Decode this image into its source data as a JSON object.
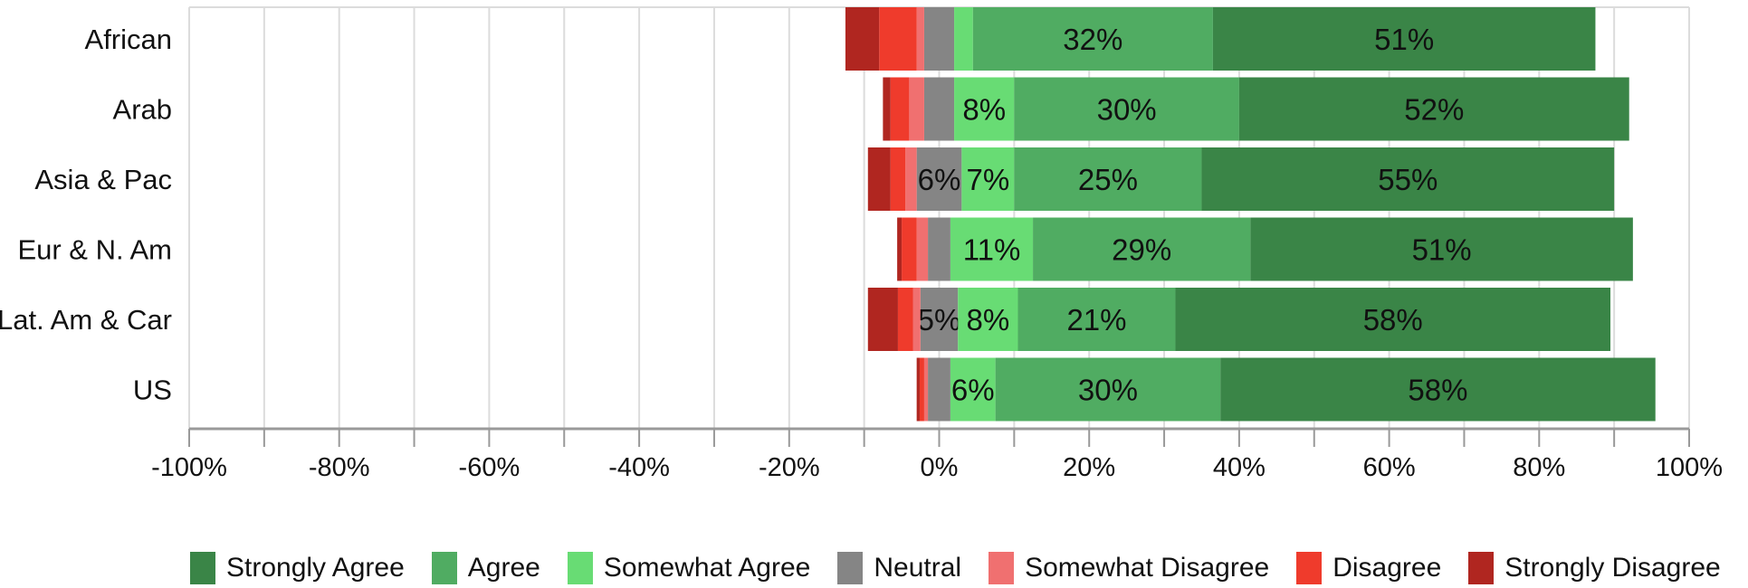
{
  "chart_data": {
    "type": "bar",
    "orientation": "horizontal",
    "stacked": true,
    "diverging": true,
    "categories": [
      "African",
      "Arab",
      "Asia & Pac",
      "Eur & N. Am",
      "Lat. Am & Car",
      "US"
    ],
    "xlim": [
      -100,
      100
    ],
    "x_ticks": [
      -100,
      -80,
      -60,
      -40,
      -20,
      0,
      20,
      40,
      60,
      80,
      100
    ],
    "x_tick_labels": [
      "-100%",
      "-80%",
      "-60%",
      "-40%",
      "-20%",
      "0%",
      "20%",
      "40%",
      "60%",
      "80%",
      "100%"
    ],
    "grid": "vertical",
    "legend_position": "bottom",
    "series": [
      {
        "name": "Strongly Agree",
        "color": "#3a8547",
        "side": "positive",
        "values": [
          51,
          52,
          55,
          51,
          58,
          58
        ],
        "labels": [
          "51%",
          "52%",
          "55%",
          "51%",
          "58%",
          "58%"
        ]
      },
      {
        "name": "Agree",
        "color": "#50ac62",
        "side": "positive",
        "values": [
          32,
          30,
          25,
          29,
          21,
          30
        ],
        "labels": [
          "32%",
          "30%",
          "25%",
          "29%",
          "21%",
          "30%"
        ]
      },
      {
        "name": "Somewhat Agree",
        "color": "#68dc74",
        "side": "positive",
        "values": [
          2.5,
          8,
          7,
          11,
          8,
          6
        ],
        "labels": [
          "",
          "8%",
          "7%",
          "11%",
          "8%",
          "6%"
        ]
      },
      {
        "name": "Neutral",
        "color": "#858585",
        "side": "split",
        "values": [
          4,
          4,
          6,
          3,
          5,
          3
        ],
        "labels": [
          "",
          "",
          "6%",
          "",
          "5%",
          ""
        ]
      },
      {
        "name": "Somewhat Disagree",
        "color": "#f07070",
        "side": "negative",
        "values": [
          1,
          2,
          1.5,
          1.5,
          1,
          0.5
        ],
        "labels": [
          "",
          "",
          "",
          "",
          "",
          ""
        ]
      },
      {
        "name": "Disagree",
        "color": "#ef3b2c",
        "side": "negative",
        "values": [
          5,
          2.5,
          2,
          2,
          2,
          0.6
        ],
        "labels": [
          "",
          "",
          "",
          "",
          "",
          ""
        ]
      },
      {
        "name": "Strongly Disagree",
        "color": "#b02620",
        "side": "negative",
        "values": [
          4.5,
          1,
          3,
          0.6,
          4,
          0.4
        ],
        "labels": [
          "",
          "",
          "",
          "",
          "",
          ""
        ]
      }
    ]
  }
}
